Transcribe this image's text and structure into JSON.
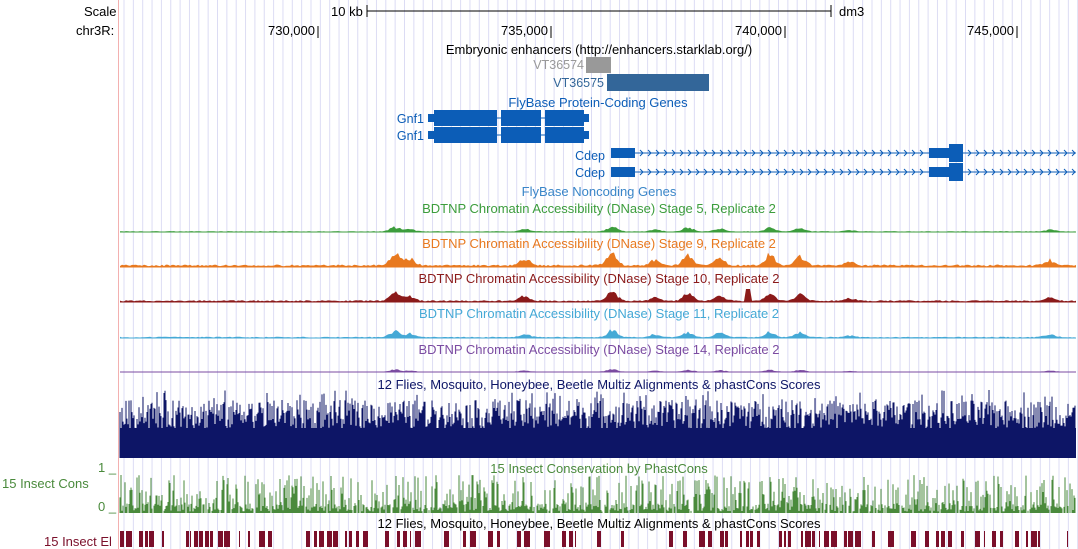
{
  "header": {
    "scale_label": "Scale",
    "chrom_label": "chr3R:",
    "scalebar_text": "10 kb",
    "assembly": "dm3",
    "positions": [
      "730,000",
      "735,000",
      "740,000",
      "745,000"
    ]
  },
  "tracks": {
    "enhancers": {
      "title": "Embryonic enhancers (http://enhancers.starklab.org/)",
      "items": [
        "VT36574",
        "VT36575"
      ],
      "colors": {
        "VT36574": "#999999",
        "VT36575": "#336699"
      }
    },
    "genes": {
      "title": "FlyBase Protein-Coding Genes",
      "items": [
        "Gnf1",
        "Gnf1",
        "Cdep",
        "Cdep"
      ],
      "color": "#0c5db7"
    },
    "noncoding": {
      "title": "FlyBase Noncoding Genes"
    },
    "dnase": [
      {
        "title": "BDTNP Chromatin Accessibility (DNase) Stage 5, Replicate 2",
        "color": "#3c9d3c"
      },
      {
        "title": "BDTNP Chromatin Accessibility (DNase) Stage 9, Replicate 2",
        "color": "#e8791f"
      },
      {
        "title": "BDTNP Chromatin Accessibility (DNase) Stage 10, Replicate 2",
        "color": "#8b1a1a"
      },
      {
        "title": "BDTNP Chromatin Accessibility (DNase) Stage 11, Replicate 2",
        "color": "#45a9d6"
      },
      {
        "title": "BDTNP Chromatin Accessibility (DNase) Stage 14, Replicate 2",
        "color": "#7b4ba1"
      }
    ],
    "multiz": {
      "title": "12 Flies, Mosquito, Honeybee, Beetle Multiz Alignments & phastCons Scores",
      "color": "#0d1566"
    },
    "phastcons": {
      "title": "15 Insect Conservation by PhastCons",
      "side_label": "15 Insect Cons",
      "ymax": "1 _",
      "ymin": "0 _",
      "color": "#4a8a3c"
    },
    "elements": {
      "title": "12 Flies, Mosquito, Honeybee, Beetle Multiz Alignments & phastCons Scores",
      "side_label": "15 Insect El",
      "color": "#7a0f2a"
    }
  }
}
